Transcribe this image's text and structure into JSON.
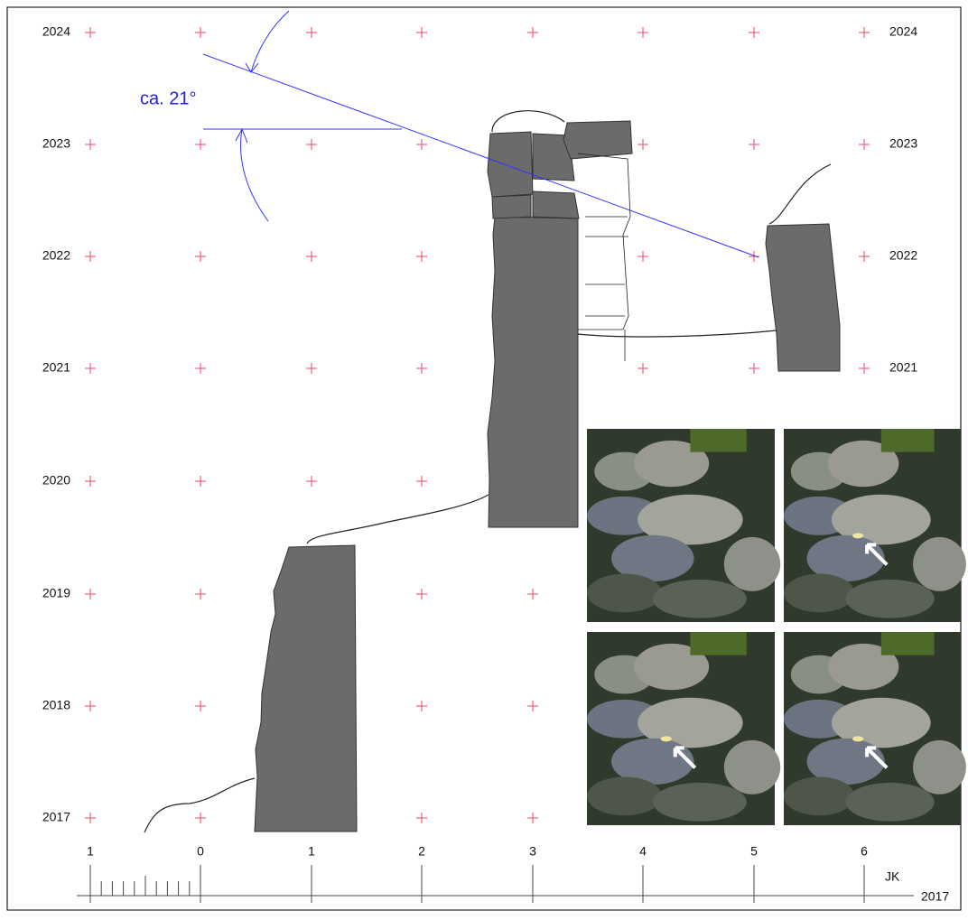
{
  "left_labels": [
    "2024",
    "2023",
    "2022",
    "2021",
    "2020",
    "2019",
    "2018",
    "2017"
  ],
  "right_labels": [
    "2024",
    "2023",
    "2022",
    "2021"
  ],
  "angle_label": "ca. 21°",
  "scale": {
    "labels": [
      "1",
      "0",
      "1",
      "2",
      "3",
      "4",
      "5",
      "6"
    ],
    "author": "JK",
    "year": "2017"
  }
}
